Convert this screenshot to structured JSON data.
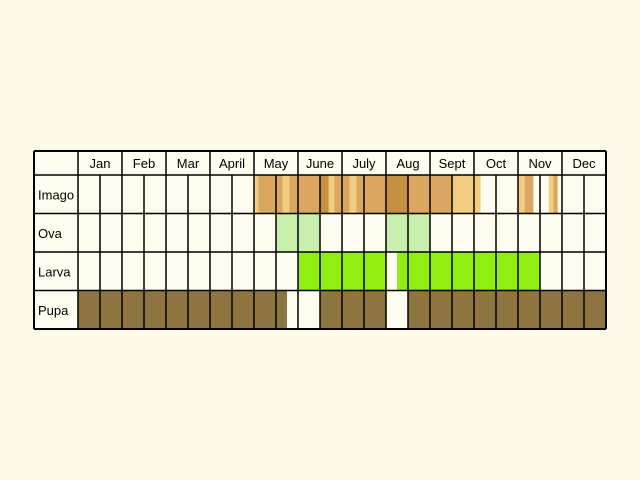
{
  "colors": {
    "background": "#fdfbe8",
    "cell": "#fffdf0",
    "grid": "#000000",
    "imago_light": "#f2cd7e",
    "imago_mid": "#dba660",
    "imago_dark": "#c48f3e",
    "ova": "#c8efad",
    "larva": "#90ee10",
    "pupa": "#8c7540"
  },
  "months": [
    "Jan",
    "Feb",
    "Mar",
    "April",
    "May",
    "June",
    "July",
    "Aug",
    "Sept",
    "Oct",
    "Nov",
    "Dec"
  ],
  "stages": [
    {
      "label": "Imago",
      "segments": [
        {
          "start": 8.05,
          "end": 8.2,
          "color": "imago_light"
        },
        {
          "start": 8.2,
          "end": 9.0,
          "color": "imago_mid"
        },
        {
          "start": 9.0,
          "end": 9.3,
          "color": "imago_mid"
        },
        {
          "start": 9.3,
          "end": 9.6,
          "color": "imago_light"
        },
        {
          "start": 9.6,
          "end": 11.0,
          "color": "imago_mid"
        },
        {
          "start": 11.0,
          "end": 11.4,
          "color": "imago_dark"
        },
        {
          "start": 11.4,
          "end": 11.65,
          "color": "imago_light"
        },
        {
          "start": 11.65,
          "end": 12.0,
          "color": "imago_mid"
        },
        {
          "start": 12.0,
          "end": 12.35,
          "color": "imago_mid"
        },
        {
          "start": 12.35,
          "end": 12.65,
          "color": "imago_light"
        },
        {
          "start": 12.65,
          "end": 13.0,
          "color": "imago_mid"
        },
        {
          "start": 13.0,
          "end": 14.0,
          "color": "imago_mid"
        },
        {
          "start": 14.0,
          "end": 15.0,
          "color": "imago_dark"
        },
        {
          "start": 15.0,
          "end": 16.0,
          "color": "imago_mid"
        },
        {
          "start": 16.0,
          "end": 17.0,
          "color": "imago_mid"
        },
        {
          "start": 17.0,
          "end": 18.0,
          "color": "imago_light"
        },
        {
          "start": 18.0,
          "end": 18.3,
          "color": "imago_light"
        },
        {
          "start": 20.3,
          "end": 20.7,
          "color": "imago_mid"
        },
        {
          "start": 20.0,
          "end": 20.3,
          "color": "imago_light"
        },
        {
          "start": 21.6,
          "end": 21.8,
          "color": "imago_mid"
        },
        {
          "start": 21.4,
          "end": 21.6,
          "color": "imago_light"
        }
      ]
    },
    {
      "label": "Ova",
      "segments": [
        {
          "start": 9.0,
          "end": 11.0,
          "color": "ova"
        },
        {
          "start": 14.0,
          "end": 16.0,
          "color": "ova"
        }
      ]
    },
    {
      "label": "Larva",
      "segments": [
        {
          "start": 10.0,
          "end": 14.0,
          "color": "larva"
        },
        {
          "start": 14.5,
          "end": 21.0,
          "color": "larva"
        }
      ]
    },
    {
      "label": "Pupa",
      "segments": [
        {
          "start": 0.0,
          "end": 9.5,
          "color": "pupa"
        },
        {
          "start": 11.0,
          "end": 14.0,
          "color": "pupa"
        },
        {
          "start": 15.0,
          "end": 24.0,
          "color": "pupa"
        }
      ]
    }
  ]
}
